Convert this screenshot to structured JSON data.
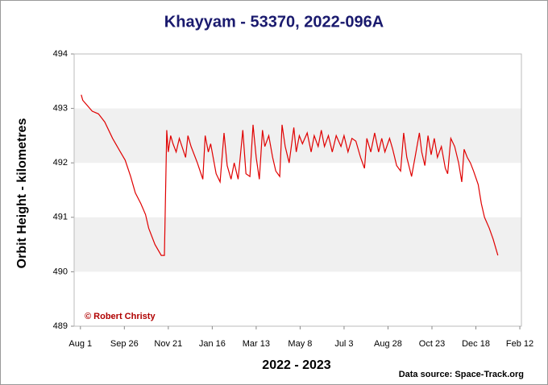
{
  "chart_data": {
    "type": "line",
    "title": "Khayyam - 53370, 2022-096A",
    "x_label": "2022 - 2023",
    "y_label": "Orbit Height - kilometres",
    "credit": "© Robert Christy",
    "source": "Data source: Space-Track.org",
    "grid": "bands",
    "color": "#e00000",
    "xlim": [
      -8,
      562
    ],
    "ylim": [
      489,
      494
    ],
    "yticks": [
      489,
      490,
      491,
      492,
      493,
      494
    ],
    "xticks": [
      {
        "value": 0,
        "label": "Aug 1"
      },
      {
        "value": 56,
        "label": "Sep 26"
      },
      {
        "value": 112,
        "label": "Nov 21"
      },
      {
        "value": 168,
        "label": "Jan 16"
      },
      {
        "value": 224,
        "label": "Mar 13"
      },
      {
        "value": 280,
        "label": "May 8"
      },
      {
        "value": 336,
        "label": "Jul 3"
      },
      {
        "value": 392,
        "label": "Aug 28"
      },
      {
        "value": 448,
        "label": "Oct 23"
      },
      {
        "value": 504,
        "label": "Dec 18"
      },
      {
        "value": 560,
        "label": "Feb 12"
      }
    ],
    "x": [
      1,
      3,
      15,
      23,
      31,
      41,
      51,
      57,
      64,
      70,
      77,
      83,
      87,
      95,
      103,
      107,
      110,
      112,
      115,
      118,
      122,
      126,
      134,
      137,
      141,
      149,
      156,
      159,
      163,
      166,
      173,
      178,
      183,
      187,
      192,
      196,
      201,
      207,
      211,
      216,
      220,
      224,
      228,
      232,
      235,
      240,
      245,
      249,
      254,
      257,
      261,
      266,
      272,
      275,
      279,
      283,
      289,
      294,
      298,
      303,
      307,
      311,
      316,
      321,
      326,
      332,
      336,
      341,
      346,
      351,
      357,
      362,
      365,
      370,
      375,
      380,
      384,
      388,
      394,
      398,
      403,
      408,
      412,
      416,
      422,
      427,
      432,
      435,
      439,
      443,
      447,
      451,
      455,
      460,
      465,
      468,
      472,
      477,
      482,
      486,
      489,
      493,
      497,
      501,
      507,
      511,
      515,
      521,
      526,
      532
    ],
    "values": [
      493.25,
      493.15,
      492.95,
      492.9,
      492.75,
      492.45,
      492.2,
      492.05,
      491.75,
      491.45,
      491.25,
      491.05,
      490.8,
      490.5,
      490.3,
      490.3,
      492.6,
      492.2,
      492.5,
      492.35,
      492.2,
      492.45,
      492.1,
      492.5,
      492.3,
      492.0,
      491.7,
      492.5,
      492.2,
      492.35,
      491.8,
      491.65,
      492.55,
      491.95,
      491.7,
      492.0,
      491.7,
      492.6,
      491.8,
      491.75,
      492.7,
      492.1,
      491.7,
      492.6,
      492.3,
      492.5,
      492.1,
      491.85,
      491.75,
      492.7,
      492.3,
      492.0,
      492.65,
      492.2,
      492.5,
      492.35,
      492.55,
      492.2,
      492.5,
      492.3,
      492.6,
      492.3,
      492.5,
      492.2,
      492.5,
      492.3,
      492.5,
      492.2,
      492.45,
      492.4,
      492.1,
      491.9,
      492.45,
      492.2,
      492.55,
      492.2,
      492.45,
      492.2,
      492.45,
      492.25,
      491.95,
      491.85,
      492.55,
      492.1,
      491.75,
      492.15,
      492.55,
      492.2,
      491.95,
      492.5,
      492.15,
      492.45,
      492.1,
      492.3,
      491.9,
      491.8,
      492.45,
      492.3,
      492.0,
      491.65,
      492.25,
      492.1,
      492.0,
      491.85,
      491.6,
      491.25,
      491.0,
      490.8,
      490.6,
      490.3
    ]
  }
}
